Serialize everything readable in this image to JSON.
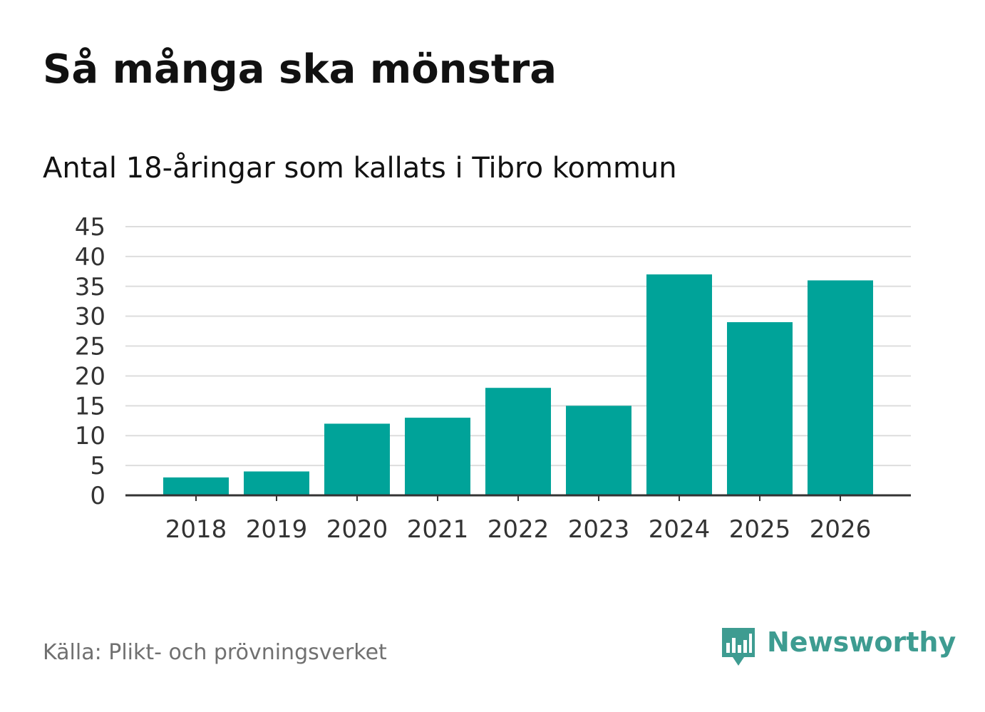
{
  "title": "Så många ska mönstra",
  "subtitle": "Antal 18-åringar som kallats i Tibro kommun",
  "source": "Källa: Plikt- och prövningsverket",
  "brand": {
    "name": "Newsworthy",
    "color": "#3e9c91",
    "icon": "newsworthy-logo-icon"
  },
  "colors": {
    "bar": "#00a399",
    "grid": "#dddddd",
    "axis": "#333333"
  },
  "chart_data": {
    "type": "bar",
    "title": "Så många ska mönstra",
    "subtitle": "Antal 18-åringar som kallats i Tibro kommun",
    "categories": [
      "2018",
      "2019",
      "2020",
      "2021",
      "2022",
      "2023",
      "2024",
      "2025",
      "2026"
    ],
    "values": [
      3,
      4,
      12,
      13,
      18,
      15,
      37,
      29,
      36
    ],
    "yticks": [
      0,
      5,
      10,
      15,
      20,
      25,
      30,
      35,
      40,
      45
    ],
    "ylim": [
      0,
      45
    ],
    "xlabel": "",
    "ylabel": "",
    "grid": true,
    "legend": "none"
  }
}
